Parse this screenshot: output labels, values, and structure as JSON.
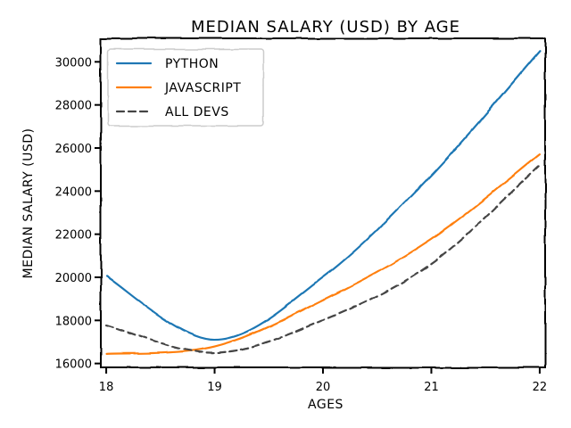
{
  "chart_data": {
    "type": "line",
    "title": "MEDIAN SALARY (USD) BY AGE",
    "xlabel": "AGES",
    "ylabel": "MEDIAN SALARY (USD)",
    "x": [
      18,
      19,
      20,
      21,
      22
    ],
    "xlim": [
      17.95,
      22.05
    ],
    "ylim": [
      15820,
      31090
    ],
    "xticks": [
      18,
      19,
      20,
      21,
      22
    ],
    "yticks": [
      16000,
      18000,
      20000,
      22000,
      24000,
      26000,
      28000,
      30000
    ],
    "grid": false,
    "legend_position": "upper-left",
    "series": [
      {
        "name": "PYTHON",
        "color": "#1f77b4",
        "dash": "solid",
        "values": [
          20046,
          17100,
          20000,
          24744,
          30500
        ]
      },
      {
        "name": "JAVASCRIPT",
        "color": "#ff7f0e",
        "dash": "solid",
        "values": [
          16446,
          16791,
          18942,
          21780,
          25704
        ]
      },
      {
        "name": "ALL DEVS",
        "color": "#444444",
        "dash": "dashed",
        "values": [
          17784,
          16500,
          18012,
          20628,
          25206
        ]
      }
    ]
  }
}
